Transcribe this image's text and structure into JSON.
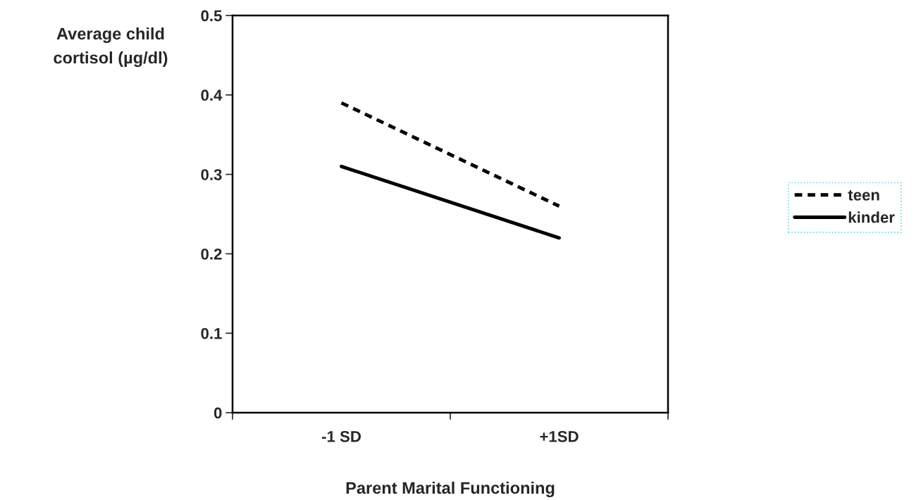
{
  "chart_data": {
    "type": "line",
    "xlabel": "Parent Marital Functioning",
    "ylabel": "Average child\ncortisol (µg/dl)",
    "categories": [
      "-1 SD",
      "+1SD"
    ],
    "series": [
      {
        "name": "teen",
        "color": "#000000",
        "line_style": "dashed",
        "values": [
          0.39,
          0.26
        ]
      },
      {
        "name": "kinder",
        "color": "#000000",
        "line_style": "solid",
        "values": [
          0.31,
          0.22
        ]
      }
    ],
    "ylim": [
      0,
      0.5
    ],
    "yticks": [
      0,
      0.1,
      0.2,
      0.3,
      0.4,
      0.5
    ],
    "grid": false,
    "legend": "right"
  }
}
